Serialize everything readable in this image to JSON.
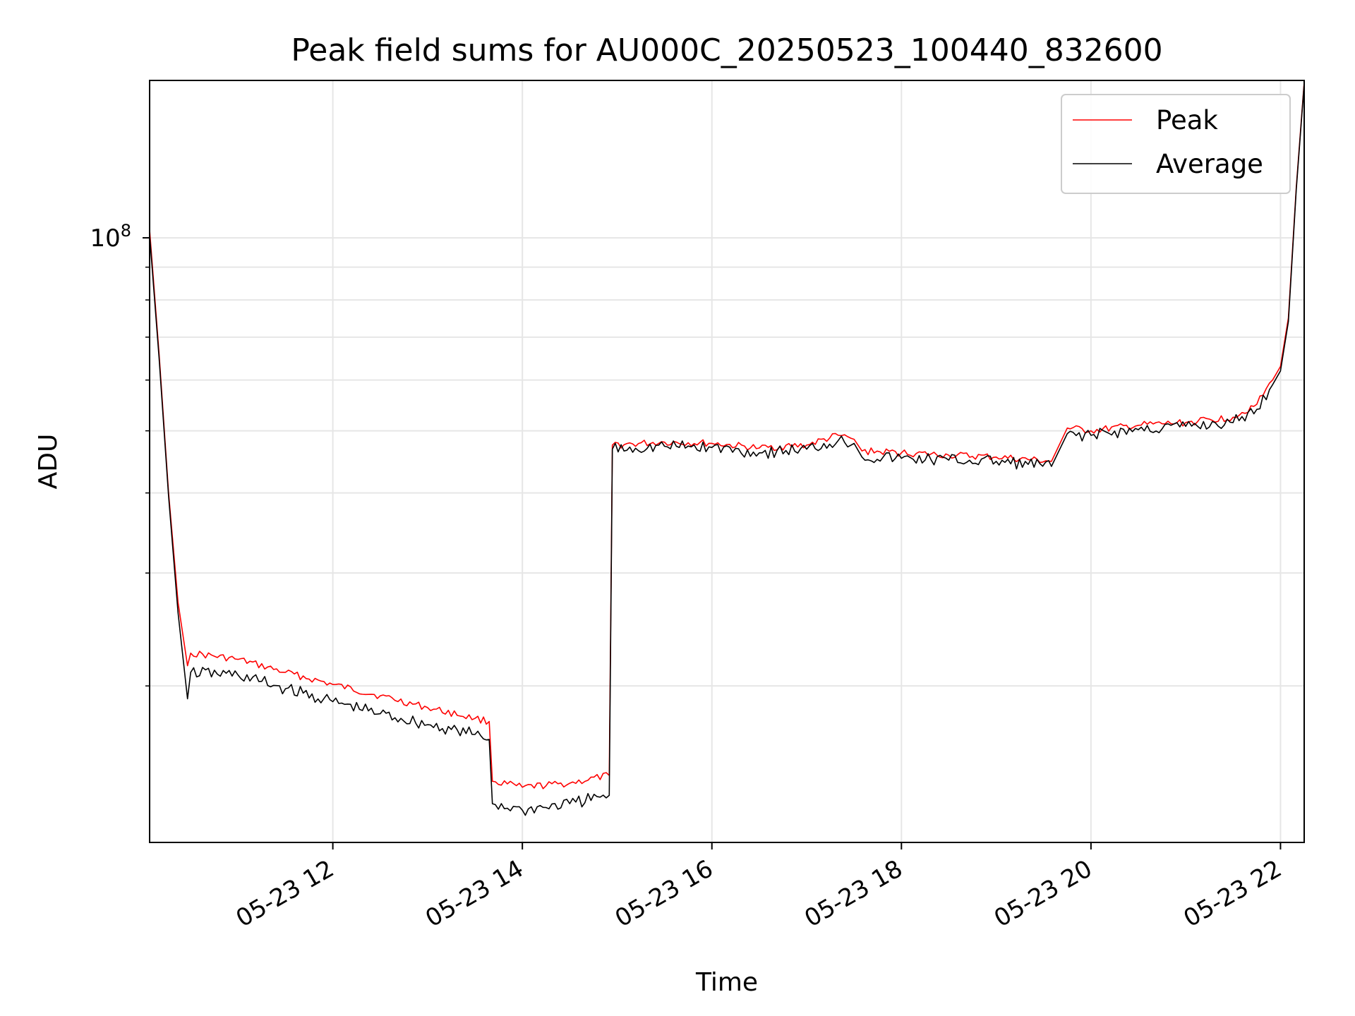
{
  "chart_data": {
    "type": "line",
    "title": "Peak field sums for AU000C_20250523_100440_832600",
    "xlabel": "Time",
    "ylabel": "ADU",
    "y_scale": "log",
    "ylim": [
      11400000,
      176000000
    ],
    "xlim": [
      "2025-05-23 10:04",
      "2025-05-23 22:15"
    ],
    "x_ticks": [
      {
        "t": "2025-05-23 12:00",
        "label": "05-23 12"
      },
      {
        "t": "2025-05-23 14:00",
        "label": "05-23 14"
      },
      {
        "t": "2025-05-23 16:00",
        "label": "05-23 16"
      },
      {
        "t": "2025-05-23 18:00",
        "label": "05-23 18"
      },
      {
        "t": "2025-05-23 20:00",
        "label": "05-23 20"
      },
      {
        "t": "2025-05-23 22:00",
        "label": "05-23 22"
      }
    ],
    "y_major_ticks": [
      {
        "value": 100000000,
        "base": "10",
        "exp": "8"
      }
    ],
    "y_minor_ticks": [
      20000000,
      30000000,
      40000000,
      50000000,
      60000000,
      70000000,
      80000000,
      90000000
    ],
    "grid": true,
    "legend_position": "upper-right",
    "series": [
      {
        "name": "Peak",
        "color": "#ff0000",
        "points": [
          {
            "t": "2025-05-23 10:04",
            "v": 103000000
          },
          {
            "t": "2025-05-23 10:10",
            "v": 66000000
          },
          {
            "t": "2025-05-23 10:16",
            "v": 40000000
          },
          {
            "t": "2025-05-23 10:22",
            "v": 27000000
          },
          {
            "t": "2025-05-23 10:28",
            "v": 21500000
          },
          {
            "t": "2025-05-23 10:30",
            "v": 22500000
          },
          {
            "t": "2025-05-23 11:00",
            "v": 22000000
          },
          {
            "t": "2025-05-23 11:30",
            "v": 21000000
          },
          {
            "t": "2025-05-23 12:00",
            "v": 20100000
          },
          {
            "t": "2025-05-23 12:30",
            "v": 19300000
          },
          {
            "t": "2025-05-23 13:00",
            "v": 18500000
          },
          {
            "t": "2025-05-23 13:30",
            "v": 17800000
          },
          {
            "t": "2025-05-23 13:39",
            "v": 17600000
          },
          {
            "t": "2025-05-23 13:41",
            "v": 14200000
          },
          {
            "t": "2025-05-23 14:00",
            "v": 13900000
          },
          {
            "t": "2025-05-23 14:30",
            "v": 14100000
          },
          {
            "t": "2025-05-23 14:55",
            "v": 14500000
          },
          {
            "t": "2025-05-23 14:57",
            "v": 47500000
          },
          {
            "t": "2025-05-23 15:30",
            "v": 48000000
          },
          {
            "t": "2025-05-23 16:00",
            "v": 47800000
          },
          {
            "t": "2025-05-23 16:30",
            "v": 47000000
          },
          {
            "t": "2025-05-23 17:00",
            "v": 47500000
          },
          {
            "t": "2025-05-23 17:20",
            "v": 49200000
          },
          {
            "t": "2025-05-23 17:30",
            "v": 48500000
          },
          {
            "t": "2025-05-23 17:35",
            "v": 46500000
          },
          {
            "t": "2025-05-23 18:00",
            "v": 46200000
          },
          {
            "t": "2025-05-23 18:30",
            "v": 45800000
          },
          {
            "t": "2025-05-23 19:00",
            "v": 45500000
          },
          {
            "t": "2025-05-23 19:35",
            "v": 44800000
          },
          {
            "t": "2025-05-23 19:45",
            "v": 50500000
          },
          {
            "t": "2025-05-23 20:00",
            "v": 50000000
          },
          {
            "t": "2025-05-23 20:30",
            "v": 51000000
          },
          {
            "t": "2025-05-23 21:00",
            "v": 51500000
          },
          {
            "t": "2025-05-23 21:30",
            "v": 52500000
          },
          {
            "t": "2025-05-23 21:45",
            "v": 55000000
          },
          {
            "t": "2025-05-23 21:55",
            "v": 60000000
          },
          {
            "t": "2025-05-23 22:00",
            "v": 63000000
          },
          {
            "t": "2025-05-23 22:05",
            "v": 75000000
          },
          {
            "t": "2025-05-23 22:10",
            "v": 120000000
          },
          {
            "t": "2025-05-23 22:15",
            "v": 175000000
          }
        ]
      },
      {
        "name": "Average",
        "color": "#000000",
        "points": [
          {
            "t": "2025-05-23 10:04",
            "v": 101000000
          },
          {
            "t": "2025-05-23 10:10",
            "v": 65000000
          },
          {
            "t": "2025-05-23 10:16",
            "v": 39500000
          },
          {
            "t": "2025-05-23 10:22",
            "v": 26000000
          },
          {
            "t": "2025-05-23 10:28",
            "v": 19100000
          },
          {
            "t": "2025-05-23 10:30",
            "v": 21000000
          },
          {
            "t": "2025-05-23 11:00",
            "v": 20800000
          },
          {
            "t": "2025-05-23 11:30",
            "v": 19800000
          },
          {
            "t": "2025-05-23 12:00",
            "v": 18900000
          },
          {
            "t": "2025-05-23 12:30",
            "v": 18100000
          },
          {
            "t": "2025-05-23 13:00",
            "v": 17400000
          },
          {
            "t": "2025-05-23 13:30",
            "v": 16800000
          },
          {
            "t": "2025-05-23 13:39",
            "v": 16500000
          },
          {
            "t": "2025-05-23 13:41",
            "v": 13100000
          },
          {
            "t": "2025-05-23 14:00",
            "v": 12800000
          },
          {
            "t": "2025-05-23 14:30",
            "v": 13100000
          },
          {
            "t": "2025-05-23 14:55",
            "v": 13500000
          },
          {
            "t": "2025-05-23 14:57",
            "v": 46800000
          },
          {
            "t": "2025-05-23 15:30",
            "v": 47300000
          },
          {
            "t": "2025-05-23 16:00",
            "v": 47100000
          },
          {
            "t": "2025-05-23 16:30",
            "v": 46200000
          },
          {
            "t": "2025-05-23 17:00",
            "v": 46800000
          },
          {
            "t": "2025-05-23 17:20",
            "v": 48300000
          },
          {
            "t": "2025-05-23 17:30",
            "v": 47800000
          },
          {
            "t": "2025-05-23 17:35",
            "v": 45500000
          },
          {
            "t": "2025-05-23 18:00",
            "v": 45300000
          },
          {
            "t": "2025-05-23 18:30",
            "v": 45000000
          },
          {
            "t": "2025-05-23 19:00",
            "v": 44800000
          },
          {
            "t": "2025-05-23 19:35",
            "v": 44000000
          },
          {
            "t": "2025-05-23 19:45",
            "v": 49500000
          },
          {
            "t": "2025-05-23 20:00",
            "v": 49200000
          },
          {
            "t": "2025-05-23 20:30",
            "v": 50200000
          },
          {
            "t": "2025-05-23 21:00",
            "v": 50800000
          },
          {
            "t": "2025-05-23 21:30",
            "v": 51500000
          },
          {
            "t": "2025-05-23 21:45",
            "v": 54000000
          },
          {
            "t": "2025-05-23 21:55",
            "v": 59000000
          },
          {
            "t": "2025-05-23 22:00",
            "v": 62000000
          },
          {
            "t": "2025-05-23 22:05",
            "v": 74000000
          },
          {
            "t": "2025-05-23 22:10",
            "v": 119000000
          },
          {
            "t": "2025-05-23 22:15",
            "v": 174000000
          }
        ]
      }
    ]
  }
}
